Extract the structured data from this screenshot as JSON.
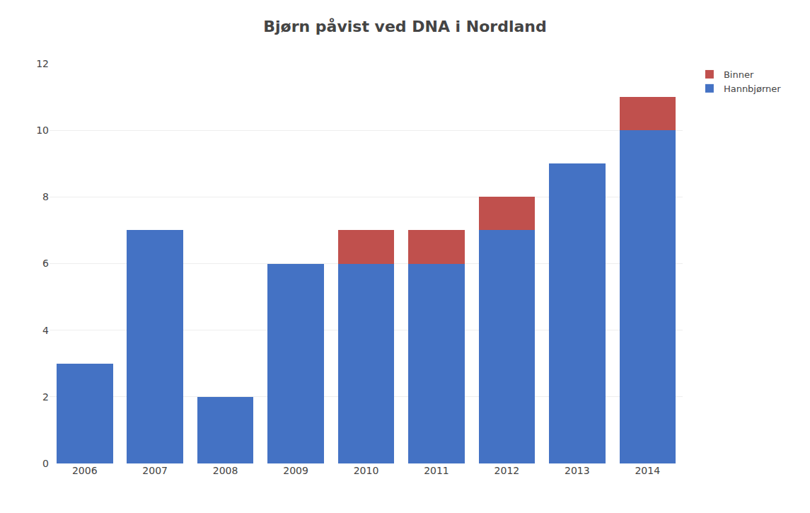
{
  "chart_data": {
    "type": "bar",
    "title": "Bjørn påvist ved DNA i Nordland",
    "categories": [
      "2006",
      "2007",
      "2008",
      "2009",
      "2010",
      "2011",
      "2012",
      "2013",
      "2014"
    ],
    "series": [
      {
        "name": "Hannbjørner",
        "color": "#4472C4",
        "values": [
          3,
          7,
          2,
          6,
          6,
          6,
          7,
          9,
          10
        ]
      },
      {
        "name": "Binner",
        "color": "#C0504D",
        "values": [
          0,
          0,
          0,
          0,
          1,
          1,
          1,
          0,
          1
        ]
      }
    ],
    "stacked": true,
    "ylim": [
      0,
      12
    ],
    "yticks": [
      0,
      2,
      4,
      6,
      8,
      10,
      12
    ],
    "grid": true,
    "legend": "upper right"
  }
}
